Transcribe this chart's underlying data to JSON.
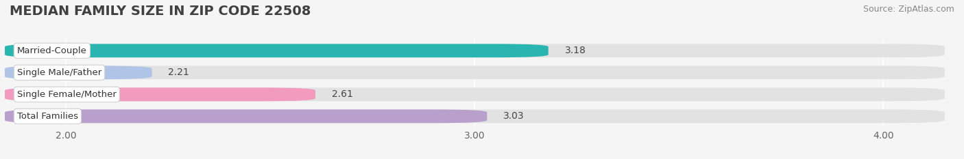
{
  "title": "MEDIAN FAMILY SIZE IN ZIP CODE 22508",
  "source": "Source: ZipAtlas.com",
  "categories": [
    "Married-Couple",
    "Single Male/Father",
    "Single Female/Mother",
    "Total Families"
  ],
  "values": [
    3.18,
    2.21,
    2.61,
    3.03
  ],
  "bar_colors": [
    "#2ab5b0",
    "#b0c4e8",
    "#f29bbf",
    "#b89fcc"
  ],
  "xlim_left": 1.85,
  "xlim_right": 4.15,
  "xticks": [
    2.0,
    3.0,
    4.0
  ],
  "xtick_labels": [
    "2.00",
    "3.00",
    "4.00"
  ],
  "bar_height": 0.62,
  "bg_color": "#f5f5f5",
  "bar_bg_color": "#e2e2e2",
  "title_fontsize": 14,
  "source_fontsize": 9,
  "label_fontsize": 9.5,
  "value_fontsize": 10
}
